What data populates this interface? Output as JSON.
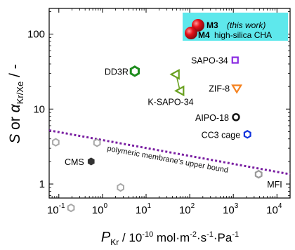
{
  "chart_data": {
    "type": "scatter",
    "xscale": "log",
    "yscale": "log",
    "xlim": [
      0.06,
      20000
    ],
    "ylim": [
      0.65,
      220
    ],
    "grid": false,
    "legend": "top-right",
    "xlabel": {
      "var": "P",
      "sub": "Kr",
      "rest": " / 10",
      "sup": "-10",
      "unit": " mol·m",
      "u1": "-2",
      "u2": "·s",
      "u3": "-1",
      "u4": "·Pa",
      "u5": "-1"
    },
    "ylabel": {
      "S": "S",
      "or": " or ",
      "alpha": "α",
      "sub": "Kr/Xe",
      "rest": " / -"
    },
    "xticks": [
      {
        "value": 0.1,
        "base": "10",
        "exp": "-1"
      },
      {
        "value": 1,
        "base": "10",
        "exp": "0"
      },
      {
        "value": 10,
        "base": "10",
        "exp": "1"
      },
      {
        "value": 100,
        "base": "10",
        "exp": "2"
      },
      {
        "value": 1000,
        "base": "10",
        "exp": "3"
      },
      {
        "value": 10000,
        "base": "10",
        "exp": "4"
      }
    ],
    "yticks": [
      {
        "value": 1,
        "label": "1"
      },
      {
        "value": 10,
        "label": "10"
      },
      {
        "value": 100,
        "label": "100"
      }
    ],
    "legend_items": [
      {
        "id": "M3",
        "label": "M3",
        "note": "(this work)",
        "color": "#e5121b"
      },
      {
        "id": "M4",
        "label": "M4",
        "note": "high-silica CHA",
        "color": "#e5121b"
      }
    ],
    "legend_bg": "#5ee8ec",
    "points": [
      {
        "label": "DD3R",
        "x": 5.5,
        "y": 32,
        "marker": "hexagon-open",
        "color": "#1e8c1e"
      },
      {
        "label": "SAPO-34",
        "x": 1100,
        "y": 45,
        "marker": "square-open",
        "color": "#8a2be2"
      },
      {
        "label": "ZIF-8",
        "x": 1200,
        "y": 19,
        "marker": "triangle-down-open",
        "color": "#f5821f"
      },
      {
        "label": "AIPO-18",
        "x": 1150,
        "y": 7.8,
        "marker": "circle-open",
        "color": "#111111"
      },
      {
        "label": "CC3 cage",
        "x": 2100,
        "y": 4.6,
        "marker": "hexagon-open",
        "color": "#1133dd"
      },
      {
        "label": "CMS",
        "x": 0.55,
        "y": 2.0,
        "marker": "hexagon-filled",
        "color": "#333333"
      },
      {
        "label": "MFI",
        "x": 3800,
        "y": 1.35,
        "marker": "hexagon-open",
        "color": "#9a9a9a"
      }
    ],
    "ksapo": {
      "label": "K-SAPO-34",
      "color": "#6aa121",
      "points": [
        {
          "x": 47,
          "y": 29
        },
        {
          "x": 60,
          "y": 17.5
        }
      ]
    },
    "gray_points": [
      {
        "x": 0.085,
        "y": 3.6
      },
      {
        "x": 0.75,
        "y": 3.55
      },
      {
        "x": 2.6,
        "y": 0.9
      },
      {
        "x": 0.19,
        "y": 0.48
      }
    ],
    "upper_bound": {
      "label": "polymeric membrane's upper bound",
      "color": "#7a1fa2",
      "x": [
        0.06,
        20000
      ],
      "y": [
        5.2,
        1.35
      ]
    }
  }
}
